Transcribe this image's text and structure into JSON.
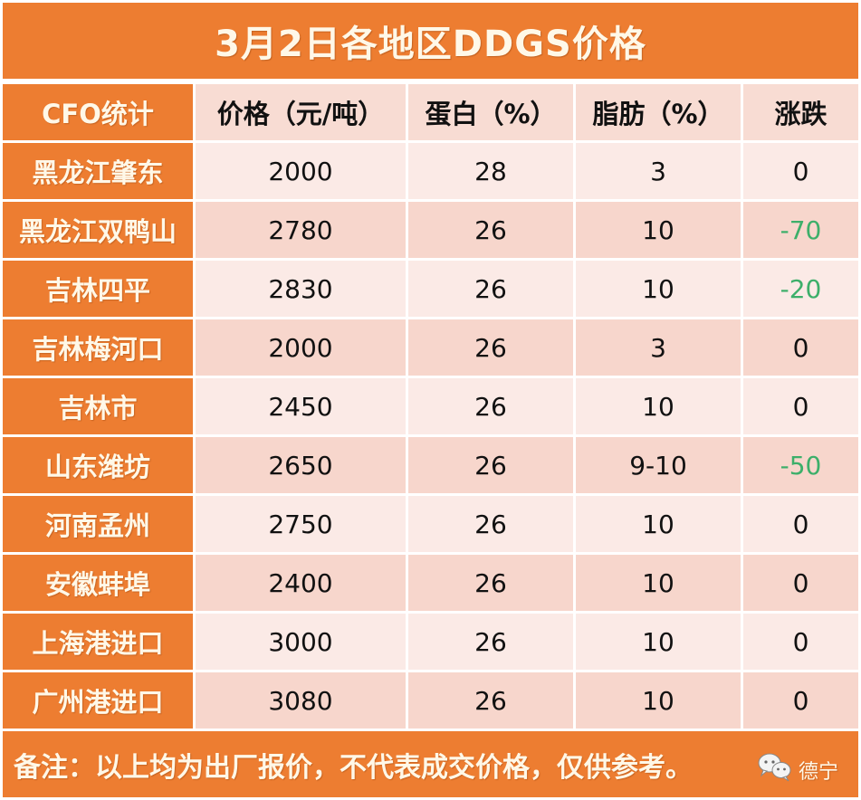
{
  "title": "3月2日各地区DDGS价格",
  "header": {
    "region": "CFO统计",
    "price": "价格（元/吨）",
    "protein": "蛋白（%）",
    "fat": "脂肪（%）",
    "change": "涨跌"
  },
  "rows": [
    {
      "region": "黑龙江肇东",
      "price": "2000",
      "protein": "28",
      "fat": "3",
      "change": "0"
    },
    {
      "region": "黑龙江双鸭山",
      "price": "2780",
      "protein": "26",
      "fat": "10",
      "change": "-70"
    },
    {
      "region": "吉林四平",
      "price": "2830",
      "protein": "26",
      "fat": "10",
      "change": "-20"
    },
    {
      "region": "吉林梅河口",
      "price": "2000",
      "protein": "26",
      "fat": "3",
      "change": "0"
    },
    {
      "region": "吉林市",
      "price": "2450",
      "protein": "26",
      "fat": "10",
      "change": "0"
    },
    {
      "region": "山东潍坊",
      "price": "2650",
      "protein": "26",
      "fat": "9-10",
      "change": "-50"
    },
    {
      "region": "河南孟州",
      "price": "2750",
      "protein": "26",
      "fat": "10",
      "change": "0"
    },
    {
      "region": "安徽蚌埠",
      "price": "2400",
      "protein": "26",
      "fat": "10",
      "change": "0"
    },
    {
      "region": "上海港进口",
      "price": "3000",
      "protein": "26",
      "fat": "10",
      "change": "0"
    },
    {
      "region": "广州港进口",
      "price": "3080",
      "protein": "26",
      "fat": "10",
      "change": "0"
    }
  ],
  "footer": {
    "note": "备注：以上均为出厂报价，不代表成交价格，仅供参考。",
    "watermark_icon": "wechat-icon",
    "watermark_text": "德宁"
  },
  "colors": {
    "accent": "#ED7D31",
    "row_light": "#FBEAE6",
    "row_dark": "#F7D6CC",
    "negative": "#3DAF6A"
  }
}
